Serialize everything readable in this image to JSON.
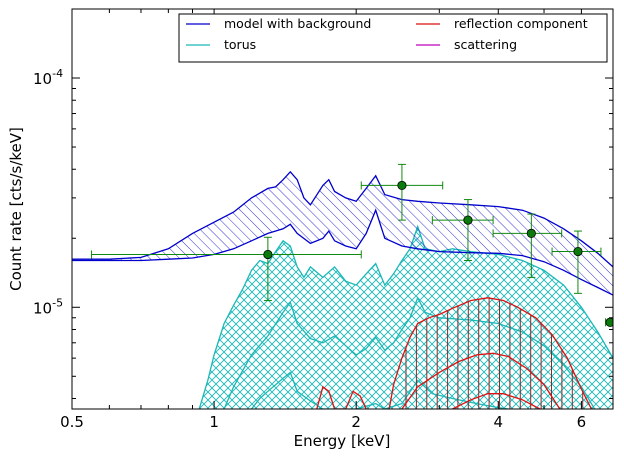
{
  "chart_data": {
    "type": "line",
    "xlabel": "Energy [keV]",
    "ylabel": "Count rate [cts/s/keV]",
    "xscale": "log",
    "yscale": "log",
    "xlim": [
      0.5,
      7.0
    ],
    "ylim": [
      3.6e-06,
      0.0002
    ],
    "grid": false,
    "legend_placement": "top-right",
    "legend_columns": 2,
    "x_ticks": [
      {
        "value": 0.5,
        "label": "0.5"
      },
      {
        "value": 1,
        "label": "1"
      },
      {
        "value": 2,
        "label": "2"
      },
      {
        "value": 4,
        "label": "4"
      },
      {
        "value": 6,
        "label": "6"
      }
    ],
    "y_ticks": [
      {
        "value": 1e-05,
        "mantissa": "10",
        "exponent": "-5"
      },
      {
        "value": 0.0001,
        "mantissa": "10",
        "exponent": "-4"
      }
    ],
    "colors": {
      "model": "#0000cc",
      "torus": "#1ab8b8",
      "reflection": "#dd1111",
      "reflection_hatch": "#8a2a2a",
      "scattering": "#bb00bb",
      "data": "#118811",
      "data_marker": "#0a7a0a"
    },
    "series": [
      {
        "name": "model with background",
        "color": "#0000cc",
        "hatch": "diagonal",
        "upper": [
          [
            0.5,
            1.62e-05
          ],
          [
            0.6,
            1.62e-05
          ],
          [
            0.7,
            1.65e-05
          ],
          [
            0.8,
            1.8e-05
          ],
          [
            0.9,
            2.1e-05
          ],
          [
            1.0,
            2.35e-05
          ],
          [
            1.1,
            2.6e-05
          ],
          [
            1.2,
            3e-05
          ],
          [
            1.3,
            3.3e-05
          ],
          [
            1.35,
            3.35e-05
          ],
          [
            1.4,
            3.6e-05
          ],
          [
            1.45,
            3.9e-05
          ],
          [
            1.5,
            3.6e-05
          ],
          [
            1.55,
            3e-05
          ],
          [
            1.6,
            2.8e-05
          ],
          [
            1.7,
            3.4e-05
          ],
          [
            1.75,
            3.6e-05
          ],
          [
            1.8,
            3.2e-05
          ],
          [
            1.9,
            3e-05
          ],
          [
            2.0,
            2.9e-05
          ],
          [
            2.1,
            3.3e-05
          ],
          [
            2.2,
            3.75e-05
          ],
          [
            2.3,
            3.1e-05
          ],
          [
            2.5,
            2.95e-05
          ],
          [
            2.7,
            2.9e-05
          ],
          [
            3.0,
            2.85e-05
          ],
          [
            3.5,
            2.8e-05
          ],
          [
            4.0,
            2.75e-05
          ],
          [
            4.5,
            2.65e-05
          ],
          [
            5.0,
            2.45e-05
          ],
          [
            5.5,
            2.2e-05
          ],
          [
            6.0,
            1.95e-05
          ],
          [
            6.5,
            1.72e-05
          ],
          [
            7.0,
            1.5e-05
          ]
        ],
        "lower": [
          [
            0.5,
            1.6e-05
          ],
          [
            0.6,
            1.6e-05
          ],
          [
            0.7,
            1.6e-05
          ],
          [
            0.8,
            1.62e-05
          ],
          [
            0.9,
            1.64e-05
          ],
          [
            1.0,
            1.7e-05
          ],
          [
            1.1,
            1.8e-05
          ],
          [
            1.2,
            1.95e-05
          ],
          [
            1.3,
            2.1e-05
          ],
          [
            1.4,
            2.2e-05
          ],
          [
            1.45,
            2.3e-05
          ],
          [
            1.5,
            2.1e-05
          ],
          [
            1.6,
            1.9e-05
          ],
          [
            1.7,
            2e-05
          ],
          [
            1.75,
            2.15e-05
          ],
          [
            1.8,
            1.95e-05
          ],
          [
            1.9,
            1.85e-05
          ],
          [
            2.0,
            1.8e-05
          ],
          [
            2.1,
            2.1e-05
          ],
          [
            2.2,
            2.65e-05
          ],
          [
            2.3,
            2e-05
          ],
          [
            2.5,
            1.85e-05
          ],
          [
            2.7,
            1.8e-05
          ],
          [
            3.0,
            1.75e-05
          ],
          [
            3.5,
            1.73e-05
          ],
          [
            4.0,
            1.72e-05
          ],
          [
            4.5,
            1.68e-05
          ],
          [
            5.0,
            1.58e-05
          ],
          [
            5.5,
            1.45e-05
          ],
          [
            6.0,
            1.32e-05
          ],
          [
            6.5,
            1.22e-05
          ],
          [
            7.0,
            1.13e-05
          ]
        ],
        "mid": [
          [
            0.5,
            1.61e-05
          ],
          [
            0.7,
            1.62e-05
          ],
          [
            0.9,
            1.85e-05
          ],
          [
            1.1,
            2.15e-05
          ],
          [
            1.3,
            2.6e-05
          ],
          [
            1.45,
            3e-05
          ],
          [
            1.6,
            2.3e-05
          ],
          [
            1.75,
            2.75e-05
          ],
          [
            1.9,
            2.3e-05
          ],
          [
            2.05,
            2.2e-05
          ],
          [
            2.2,
            3.15e-05
          ],
          [
            2.35,
            2.4e-05
          ],
          [
            2.7,
            2.3e-05
          ],
          [
            3.2,
            2.25e-05
          ],
          [
            4.0,
            2.2e-05
          ],
          [
            4.8,
            2.05e-05
          ],
          [
            5.5,
            1.82e-05
          ],
          [
            6.2,
            1.58e-05
          ],
          [
            7.0,
            1.3e-05
          ]
        ]
      },
      {
        "name": "torus",
        "color": "#1ab8b8",
        "hatch": "cross",
        "upper": [
          [
            0.93,
            3.6e-06
          ],
          [
            0.97,
            4.8e-06
          ],
          [
            1.0,
            6.2e-06
          ],
          [
            1.05,
            8.5e-06
          ],
          [
            1.1,
            1.02e-05
          ],
          [
            1.15,
            1.2e-05
          ],
          [
            1.2,
            1.45e-05
          ],
          [
            1.25,
            1.6e-05
          ],
          [
            1.3,
            1.55e-05
          ],
          [
            1.35,
            1.75e-05
          ],
          [
            1.4,
            1.95e-05
          ],
          [
            1.45,
            1.85e-05
          ],
          [
            1.5,
            1.5e-05
          ],
          [
            1.55,
            1.35e-05
          ],
          [
            1.6,
            1.5e-05
          ],
          [
            1.7,
            1.35e-05
          ],
          [
            1.8,
            1.5e-05
          ],
          [
            1.9,
            1.3e-05
          ],
          [
            2.0,
            1.25e-05
          ],
          [
            2.1,
            1.4e-05
          ],
          [
            2.2,
            1.55e-05
          ],
          [
            2.3,
            1.25e-05
          ],
          [
            2.4,
            1.4e-05
          ],
          [
            2.5,
            1.6e-05
          ],
          [
            2.6,
            1.8e-05
          ],
          [
            2.7,
            2.25e-05
          ],
          [
            2.8,
            1.8e-05
          ],
          [
            3.0,
            1.75e-05
          ],
          [
            3.2,
            1.8e-05
          ],
          [
            3.5,
            1.75e-05
          ],
          [
            4.0,
            1.7e-05
          ],
          [
            4.5,
            1.6e-05
          ],
          [
            5.0,
            1.45e-05
          ],
          [
            5.5,
            1.25e-05
          ],
          [
            6.0,
            1e-05
          ],
          [
            6.5,
            7.8e-06
          ],
          [
            7.0,
            6e-06
          ]
        ],
        "lower": [
          [
            1.2,
            3.6e-06
          ],
          [
            1.25,
            4e-06
          ],
          [
            1.3,
            4.3e-06
          ],
          [
            1.4,
            4.9e-06
          ],
          [
            1.45,
            5.2e-06
          ],
          [
            1.5,
            4.3e-06
          ],
          [
            1.6,
            3.9e-06
          ],
          [
            1.7,
            3.6e-06
          ],
          [
            2.0,
            3.6e-06
          ],
          [
            2.2,
            3.8e-06
          ],
          [
            2.3,
            3.6e-06
          ],
          [
            2.5,
            3.8e-06
          ],
          [
            2.7,
            4.8e-06
          ],
          [
            2.9,
            4.2e-06
          ],
          [
            3.2,
            4e-06
          ],
          [
            3.6,
            3.8e-06
          ],
          [
            4.0,
            3.65e-06
          ],
          [
            4.2,
            3.6e-06
          ]
        ],
        "mid": [
          [
            1.05,
            3.6e-06
          ],
          [
            1.1,
            4.5e-06
          ],
          [
            1.2,
            6.2e-06
          ],
          [
            1.3,
            7.5e-06
          ],
          [
            1.4,
            9.5e-06
          ],
          [
            1.45,
            1.05e-05
          ],
          [
            1.5,
            8.5e-06
          ],
          [
            1.6,
            7.3e-06
          ],
          [
            1.7,
            7e-06
          ],
          [
            1.8,
            7.5e-06
          ],
          [
            1.9,
            6.8e-06
          ],
          [
            2.0,
            6.2e-06
          ],
          [
            2.1,
            6.6e-06
          ],
          [
            2.2,
            7.4e-06
          ],
          [
            2.3,
            6.5e-06
          ],
          [
            2.4,
            7e-06
          ],
          [
            2.5,
            8e-06
          ],
          [
            2.6,
            9e-06
          ],
          [
            2.7,
            1.1e-05
          ],
          [
            2.8,
            9.5e-06
          ],
          [
            3.0,
            9e-06
          ],
          [
            3.5,
            8.8e-06
          ],
          [
            4.0,
            8.5e-06
          ],
          [
            4.5,
            7.8e-06
          ],
          [
            5.0,
            6.8e-06
          ],
          [
            5.5,
            5.6e-06
          ],
          [
            6.0,
            4.5e-06
          ],
          [
            6.4,
            3.6e-06
          ]
        ]
      },
      {
        "name": "reflection component",
        "color": "#dd1111",
        "hatch": "vertical",
        "upper": [
          [
            2.35,
            3.6e-06
          ],
          [
            2.4,
            4.6e-06
          ],
          [
            2.5,
            6e-06
          ],
          [
            2.6,
            7.4e-06
          ],
          [
            2.7,
            8.5e-06
          ],
          [
            2.85,
            9e-06
          ],
          [
            3.0,
            9.3e-06
          ],
          [
            3.2,
            9.9e-06
          ],
          [
            3.5,
            1.07e-05
          ],
          [
            3.8,
            1.1e-05
          ],
          [
            4.1,
            1.07e-05
          ],
          [
            4.4,
            1e-05
          ],
          [
            4.8,
            9e-06
          ],
          [
            5.2,
            7.6e-06
          ],
          [
            5.6,
            6e-06
          ],
          [
            6.0,
            4.4e-06
          ],
          [
            6.3,
            3.6e-06
          ]
        ],
        "lower": [
          [
            3.2,
            3.6e-06
          ],
          [
            3.5,
            3.95e-06
          ],
          [
            3.8,
            4.2e-06
          ],
          [
            4.1,
            4.2e-06
          ],
          [
            4.5,
            3.95e-06
          ],
          [
            4.9,
            3.6e-06
          ]
        ],
        "extra": [
          [
            1.65,
            3.6e-06
          ],
          [
            1.7,
            4.5e-06
          ],
          [
            1.75,
            4.3e-06
          ],
          [
            1.8,
            3.6e-06
          ],
          [
            1.9,
            3.6e-06
          ],
          [
            1.97,
            4.3e-06
          ],
          [
            2.04,
            4.1e-06
          ],
          [
            2.1,
            3.6e-06
          ]
        ],
        "mid": [
          [
            2.5,
            3.6e-06
          ],
          [
            2.7,
            4.5e-06
          ],
          [
            3.0,
            5.2e-06
          ],
          [
            3.3,
            5.8e-06
          ],
          [
            3.6,
            6.2e-06
          ],
          [
            3.9,
            6.3e-06
          ],
          [
            4.2,
            6.1e-06
          ],
          [
            4.6,
            5.4e-06
          ],
          [
            5.0,
            4.6e-06
          ],
          [
            5.4,
            3.6e-06
          ]
        ]
      },
      {
        "name": "scattering",
        "color": "#bb00bb",
        "points": []
      }
    ],
    "data_points": [
      {
        "x": 1.3,
        "y": 1.7e-05,
        "xerr": [
          0.55,
          2.05
        ],
        "yerr": [
          1.07e-05,
          2.02e-05
        ]
      },
      {
        "x": 2.5,
        "y": 3.4e-05,
        "xerr": [
          2.05,
          3.05
        ],
        "yerr": [
          2.4e-05,
          4.2e-05
        ]
      },
      {
        "x": 3.45,
        "y": 2.4e-05,
        "xerr": [
          2.9,
          3.9
        ],
        "yerr": [
          1.6e-05,
          2.95e-05
        ]
      },
      {
        "x": 4.7,
        "y": 2.1e-05,
        "xerr": [
          3.9,
          5.45
        ],
        "yerr": [
          1.35e-05,
          2.55e-05
        ]
      },
      {
        "x": 5.9,
        "y": 1.75e-05,
        "xerr": [
          5.2,
          6.6
        ],
        "yerr": [
          1.15e-05,
          2.15e-05
        ]
      },
      {
        "x": 6.9,
        "y": 8.6e-06,
        "xerr": [
          6.75,
          7.05
        ],
        "yerr": [
          8.6e-06,
          8.6e-06
        ]
      }
    ]
  }
}
